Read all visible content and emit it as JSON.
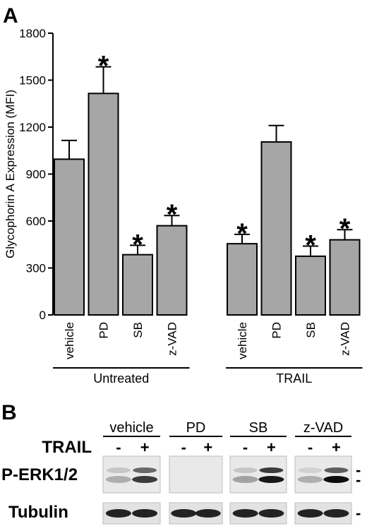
{
  "panel_a_label": "A",
  "panel_b_label": "B",
  "chart_data": {
    "type": "bar",
    "ylabel": "Glycophorin A Expression (MFI)",
    "ylim": [
      0,
      1800
    ],
    "yticks": [
      0,
      300,
      600,
      900,
      1200,
      1500,
      1800
    ],
    "bar_color": "#a6a6a6",
    "groups": [
      {
        "name": "Untreated",
        "bars": [
          {
            "category": "vehicle",
            "value": 995,
            "error": 120,
            "significant": false
          },
          {
            "category": "PD",
            "value": 1415,
            "error": 170,
            "significant": true
          },
          {
            "category": "SB",
            "value": 385,
            "error": 60,
            "significant": true
          },
          {
            "category": "z-VAD",
            "value": 570,
            "error": 65,
            "significant": true
          }
        ]
      },
      {
        "name": "TRAIL",
        "bars": [
          {
            "category": "vehicle",
            "value": 455,
            "error": 60,
            "significant": true
          },
          {
            "category": "PD",
            "value": 1105,
            "error": 105,
            "significant": false
          },
          {
            "category": "SB",
            "value": 375,
            "error": 65,
            "significant": true
          },
          {
            "category": "z-VAD",
            "value": 480,
            "error": 65,
            "significant": true
          }
        ]
      }
    ],
    "significance_marker": "*"
  },
  "blot": {
    "treatments": [
      "vehicle",
      "PD",
      "SB",
      "z-VAD"
    ],
    "trail_label": "TRAIL",
    "minus": "-",
    "plus": "+",
    "rows": [
      {
        "label": "P-ERK1/2"
      },
      {
        "label": "Tubulin"
      }
    ],
    "marker": "-"
  }
}
